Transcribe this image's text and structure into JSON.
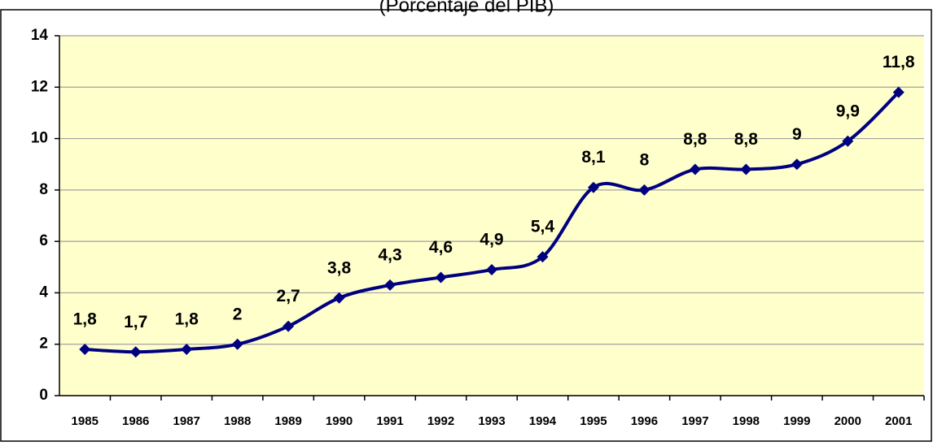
{
  "chart_data": {
    "type": "line",
    "subtitle": "(Porcentaje del PIB)",
    "categories": [
      "1985",
      "1986",
      "1987",
      "1988",
      "1989",
      "1990",
      "1991",
      "1992",
      "1993",
      "1994",
      "1995",
      "1996",
      "1997",
      "1998",
      "1999",
      "2000",
      "2001"
    ],
    "series": [
      {
        "color": "#000080",
        "values": [
          1.8,
          1.7,
          1.8,
          2,
          2.7,
          3.8,
          4.3,
          4.6,
          4.9,
          5.4,
          8.1,
          8,
          8.8,
          8.8,
          9,
          9.9,
          11.8
        ],
        "value_labels": [
          "1,8",
          "1,7",
          "1,8",
          "2",
          "2,7",
          "3,8",
          "4,3",
          "4,6",
          "4,9",
          "5,4",
          "8,1",
          "8",
          "8,8",
          "8,8",
          "9",
          "9,9",
          "11,8"
        ]
      }
    ],
    "ylim": [
      0,
      14
    ],
    "yticks": [
      0,
      2,
      4,
      6,
      8,
      10,
      12,
      14
    ],
    "grid": true,
    "plot_background": "#ffffcc"
  }
}
